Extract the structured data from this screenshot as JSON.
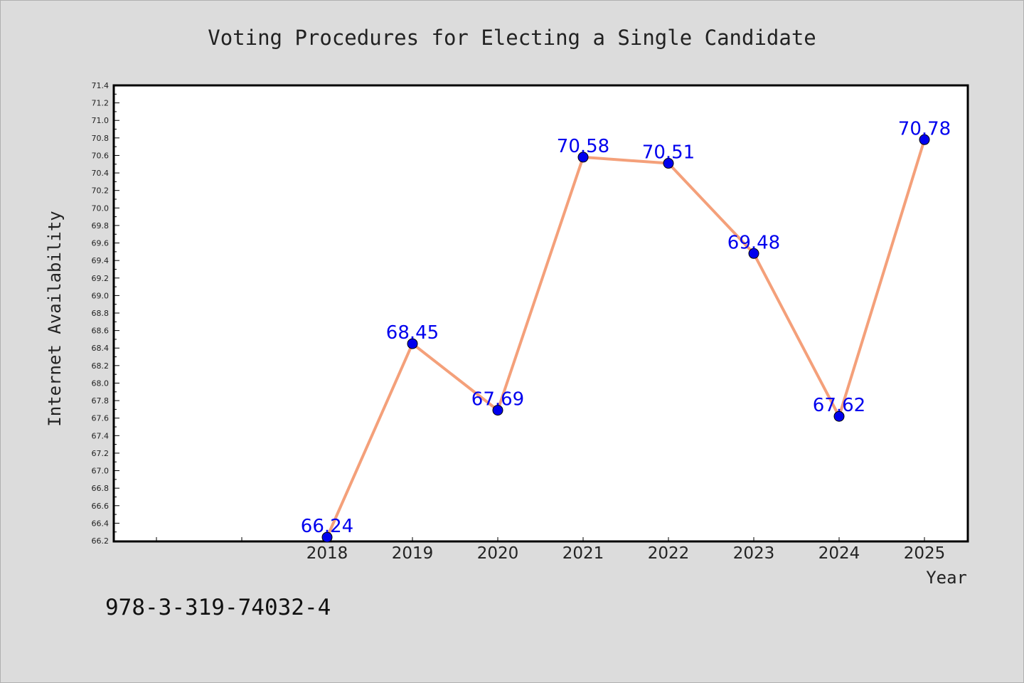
{
  "chart_data": {
    "type": "line",
    "title": "Voting Procedures for Electing a Single Candidate",
    "xlabel": "Year",
    "ylabel": "Internet Availability",
    "x": [
      "2018",
      "2019",
      "2020",
      "2021",
      "2022",
      "2023",
      "2024",
      "2025"
    ],
    "series": [
      {
        "values": [
          66.24,
          68.45,
          67.69,
          70.58,
          70.51,
          69.48,
          67.62,
          70.78
        ],
        "labels": [
          "66.24",
          "68.45",
          "67.69",
          "70.58",
          "70.51",
          "69.48",
          "67.62",
          "70.78"
        ],
        "line_color": "#f4a07a",
        "marker_color": "#0000ee"
      }
    ],
    "ylim": [
      66.2,
      71.4
    ],
    "y_ticks": [
      "66.2",
      "66.4",
      "66.6",
      "66.8",
      "67.0",
      "67.2",
      "67.4",
      "67.6",
      "67.8",
      "68.0",
      "68.2",
      "68.4",
      "68.6",
      "68.8",
      "69.0",
      "69.2",
      "69.4",
      "69.6",
      "69.8",
      "70.0",
      "70.2",
      "70.4",
      "70.6",
      "70.8",
      "71.0",
      "71.2",
      "71.4"
    ],
    "x_leading_empty_slots": 2,
    "grid": false,
    "label_color": "#0000ee",
    "background": "#dcdcdc",
    "plot_background": "#ffffff"
  },
  "footer": {
    "isbn": "978-3-319-74032-4"
  }
}
